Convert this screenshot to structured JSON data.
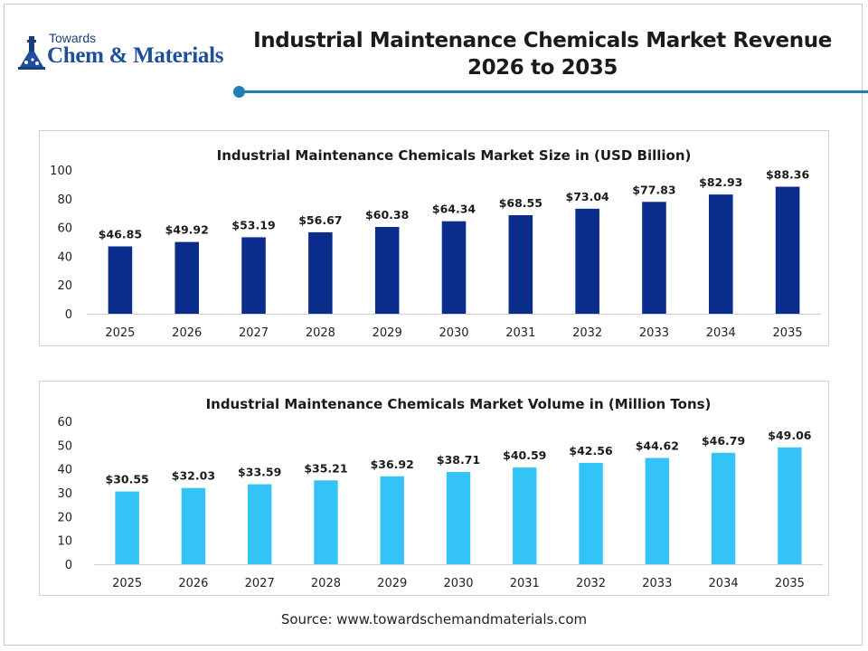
{
  "logo": {
    "top_text": "Towards",
    "main_text": "Chem & Materials"
  },
  "header": {
    "title_line1": "Industrial Maintenance Chemicals Market Revenue",
    "title_line2": "2026 to 2035"
  },
  "source": "Source: www.towardschemandmaterials.com",
  "colors": {
    "revenue_bar": "#0a2d8c",
    "volume_bar": "#33c3f7",
    "accent_line": "#1f7fb4"
  },
  "chart_data": [
    {
      "type": "bar",
      "title": "Industrial Maintenance Chemicals Market Size in (USD Billion)",
      "categories": [
        "2025",
        "2026",
        "2027",
        "2028",
        "2029",
        "2030",
        "2031",
        "2032",
        "2033",
        "2034",
        "2035"
      ],
      "values": [
        46.85,
        49.92,
        53.19,
        56.67,
        60.38,
        64.34,
        68.55,
        73.04,
        77.83,
        82.93,
        88.36
      ],
      "data_labels": [
        "$46.85",
        "$49.92",
        "$53.19",
        "$56.67",
        "$60.38",
        "$64.34",
        "$68.55",
        "$73.04",
        "$77.83",
        "$82.93",
        "$88.36"
      ],
      "yticks": [
        0,
        20,
        40,
        60,
        80,
        100
      ],
      "ylim": [
        0,
        100
      ],
      "grid": false,
      "legend": "none"
    },
    {
      "type": "bar",
      "title": "Industrial Maintenance Chemicals Market Volume in (Million Tons)",
      "categories": [
        "2025",
        "2026",
        "2027",
        "2028",
        "2029",
        "2030",
        "2031",
        "2032",
        "2033",
        "2034",
        "2035"
      ],
      "values": [
        30.55,
        32.03,
        33.59,
        35.21,
        36.92,
        38.71,
        40.59,
        42.56,
        44.62,
        46.79,
        49.06
      ],
      "data_labels": [
        "$30.55",
        "$32.03",
        "$33.59",
        "$35.21",
        "$36.92",
        "$38.71",
        "$40.59",
        "$42.56",
        "$44.62",
        "$46.79",
        "$49.06"
      ],
      "yticks": [
        0,
        10,
        20,
        30,
        40,
        50,
        60
      ],
      "ylim": [
        0,
        60
      ],
      "grid": false,
      "legend": "none"
    }
  ]
}
